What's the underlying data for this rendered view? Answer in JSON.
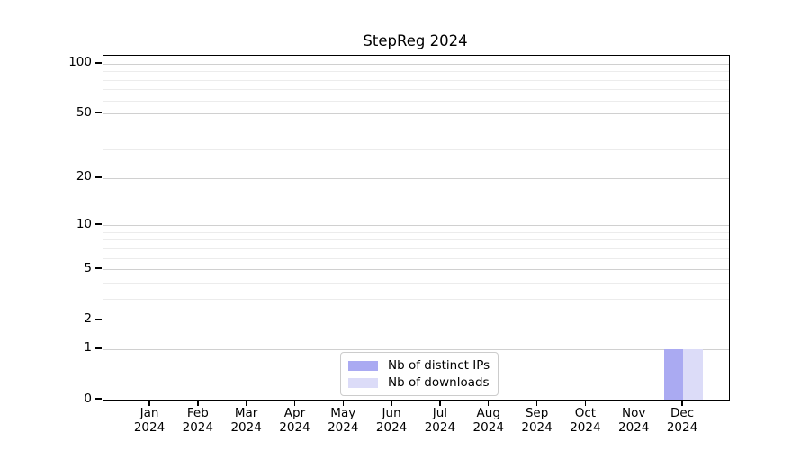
{
  "chart_data": {
    "type": "bar",
    "title": "StepReg 2024",
    "categories": [
      "Jan",
      "Feb",
      "Mar",
      "Apr",
      "May",
      "Jun",
      "Jul",
      "Aug",
      "Sep",
      "Oct",
      "Nov",
      "Dec"
    ],
    "year_label": "2024",
    "series": [
      {
        "name": "Nb of distinct IPs",
        "color": "#aaaaf2",
        "values": [
          0,
          0,
          0,
          0,
          0,
          0,
          0,
          0,
          0,
          0,
          0,
          1
        ]
      },
      {
        "name": "Nb of downloads",
        "color": "#dcdcf8",
        "values": [
          0,
          0,
          0,
          0,
          0,
          0,
          0,
          0,
          0,
          0,
          0,
          1
        ]
      }
    ],
    "yscale": "log1p",
    "ylim": [
      0,
      112
    ],
    "yticks": [
      0,
      1,
      2,
      5,
      10,
      20,
      50,
      100
    ],
    "minor_gridlines": [
      3,
      4,
      6,
      7,
      8,
      9,
      30,
      40,
      60,
      70,
      80,
      90
    ],
    "grid": true,
    "legend_position": "bottom-center",
    "colors": {
      "major_grid": "#d0d0d0",
      "minor_grid": "#ececec",
      "axis": "#000000",
      "background": "#ffffff"
    }
  }
}
